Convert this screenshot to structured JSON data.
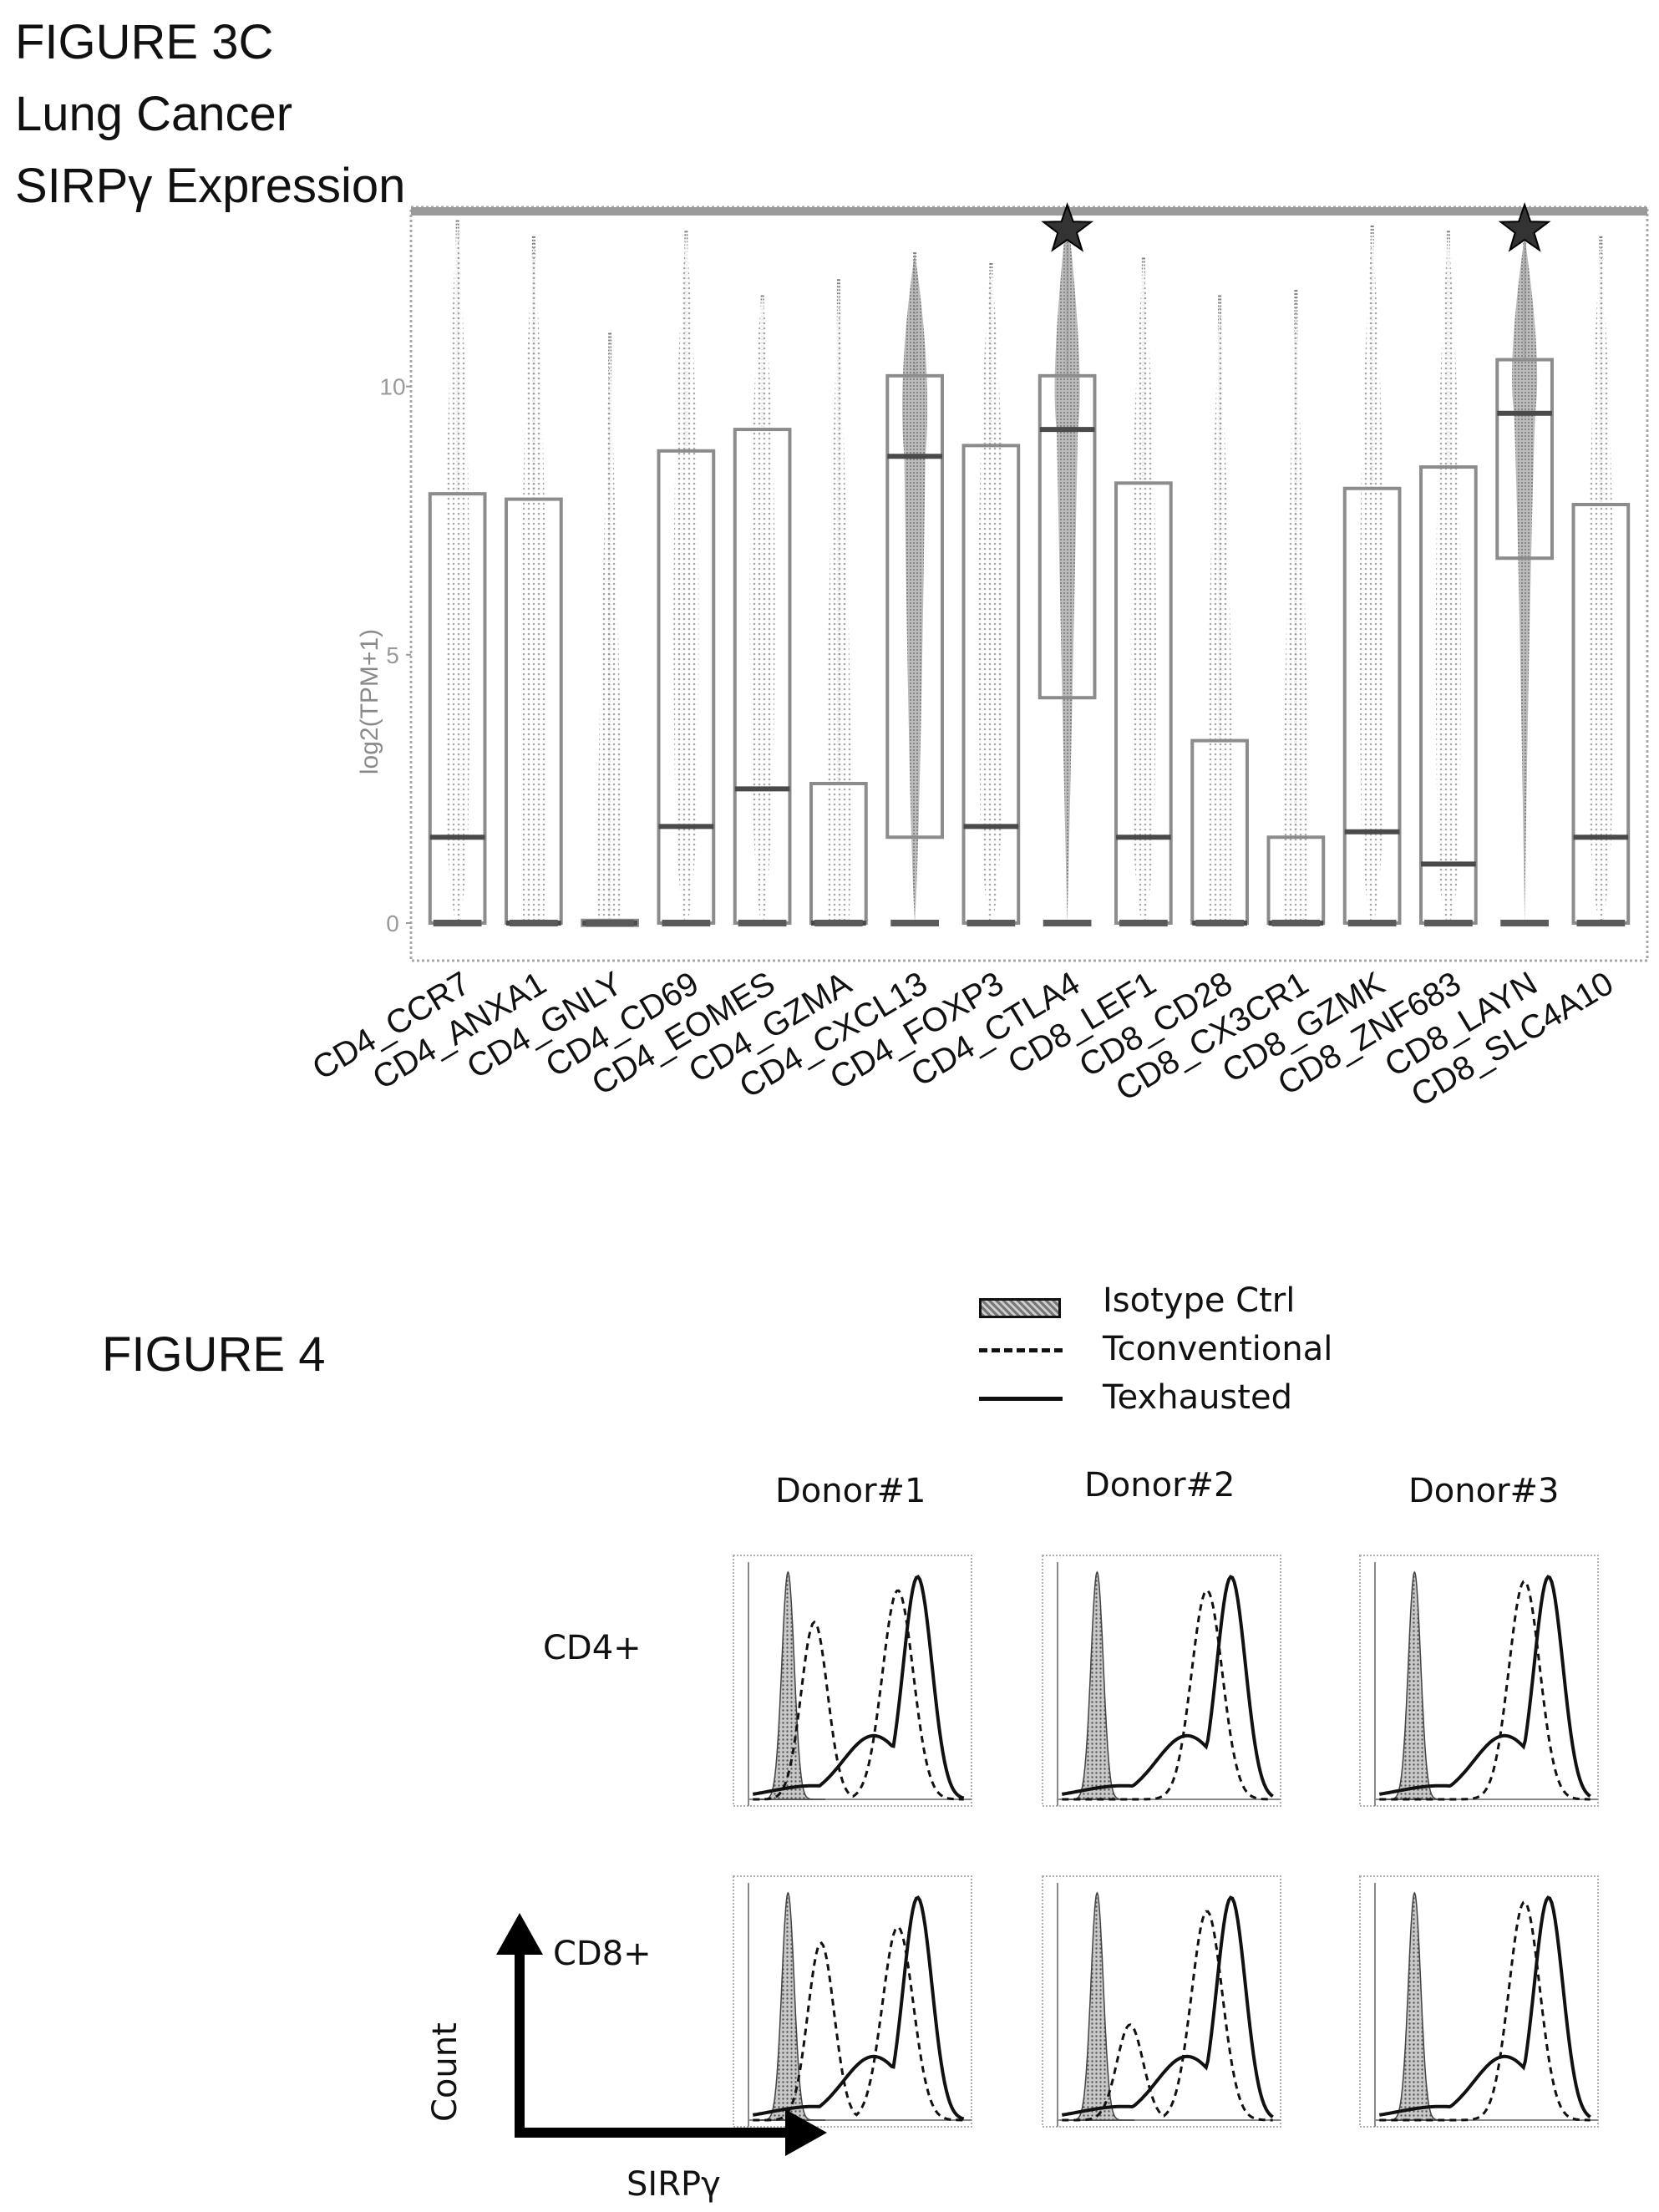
{
  "figure3c": {
    "title_lines": [
      "FIGURE 3C",
      "Lung Cancer",
      "SIRPγ Expression"
    ]
  },
  "figure4": {
    "title": "FIGURE 4",
    "legend": [
      {
        "label": "Isotype Ctrl",
        "style": "shaded"
      },
      {
        "label": "Tconventional",
        "style": "dashed"
      },
      {
        "label": "Texhausted",
        "style": "solid"
      }
    ],
    "donors": [
      "Donor#1",
      "Donor#2",
      "Donor#3"
    ],
    "rows": [
      "CD4+",
      "CD8+"
    ],
    "xlabel": "SIRPγ",
    "ylabel": "Count"
  },
  "chart_data": [
    {
      "type": "box",
      "title": "",
      "ylabel": "log2(TPM+1)",
      "ylim": [
        0,
        13
      ],
      "yticks": [
        0,
        5,
        10
      ],
      "categories": [
        "CD4_CCR7",
        "CD4_ANXA1",
        "CD4_GNLY",
        "CD4_CD69",
        "CD4_EOMES",
        "CD4_GZMA",
        "CD4_CXCL13",
        "CD4_FOXP3",
        "CD4_CTLA4",
        "CD8_LEF1",
        "CD8_CD28",
        "CD8_CX3CR1",
        "CD8_GZMK",
        "CD8_ZNF683",
        "CD8_LAYN",
        "CD8_SLC4A10"
      ],
      "boxes": [
        {
          "q1": 0,
          "median": 1.6,
          "q3": 8.0,
          "max": 13.1
        },
        {
          "q1": 0,
          "median": 0,
          "q3": 7.9,
          "max": 12.8
        },
        {
          "q1": 0,
          "median": 0,
          "q3": 0.05,
          "max": 11.0
        },
        {
          "q1": 0,
          "median": 1.8,
          "q3": 8.8,
          "max": 12.9
        },
        {
          "q1": 0,
          "median": 2.5,
          "q3": 9.2,
          "max": 11.7
        },
        {
          "q1": 0,
          "median": 0,
          "q3": 2.6,
          "max": 12.0
        },
        {
          "q1": 1.6,
          "median": 8.7,
          "q3": 10.2,
          "max": 12.5
        },
        {
          "q1": 0,
          "median": 1.8,
          "q3": 8.9,
          "max": 12.3
        },
        {
          "q1": 4.2,
          "median": 9.2,
          "q3": 10.2,
          "max": 13.3
        },
        {
          "q1": 0,
          "median": 1.6,
          "q3": 8.2,
          "max": 12.4
        },
        {
          "q1": 0,
          "median": 0,
          "q3": 3.4,
          "max": 11.7
        },
        {
          "q1": 0,
          "median": 0,
          "q3": 1.6,
          "max": 11.8
        },
        {
          "q1": 0,
          "median": 1.7,
          "q3": 8.1,
          "max": 13.0
        },
        {
          "q1": 0,
          "median": 1.1,
          "q3": 8.5,
          "max": 12.9
        },
        {
          "q1": 6.8,
          "median": 9.5,
          "q3": 10.5,
          "max": 12.8
        },
        {
          "q1": 0,
          "median": 1.6,
          "q3": 7.8,
          "max": 12.8
        }
      ],
      "highlighted": [
        "CD4_CTLA4",
        "CD8_LAYN"
      ],
      "highlight_marker": "star",
      "grid": false
    },
    {
      "type": "histogram-overlay",
      "title": "",
      "xlabel": "SIRPγ",
      "ylabel": "Count",
      "x_scale": "log",
      "ylim": [
        0,
        100
      ],
      "series_names": [
        "Isotype Ctrl",
        "Tconventional",
        "Texhausted"
      ],
      "panels": [
        {
          "donor": "Donor#1",
          "row": "CD4+",
          "iso_peak": 0.18,
          "conv_peaks": [
            [
              0.3,
              0.78
            ],
            [
              0.68,
              0.92
            ]
          ],
          "exh_peak": 0.77
        },
        {
          "donor": "Donor#2",
          "row": "CD4+",
          "iso_peak": 0.18,
          "conv_peaks": [
            [
              0.68,
              0.92
            ]
          ],
          "exh_peak": 0.79
        },
        {
          "donor": "Donor#3",
          "row": "CD4+",
          "iso_peak": 0.18,
          "conv_peaks": [
            [
              0.68,
              0.96
            ]
          ],
          "exh_peak": 0.79
        },
        {
          "donor": "Donor#1",
          "row": "CD8+",
          "iso_peak": 0.18,
          "conv_peaks": [
            [
              0.33,
              0.78
            ],
            [
              0.68,
              0.85
            ]
          ],
          "exh_peak": 0.77
        },
        {
          "donor": "Donor#2",
          "row": "CD8+",
          "iso_peak": 0.18,
          "conv_peaks": [
            [
              0.33,
              0.42
            ],
            [
              0.68,
              0.92
            ]
          ],
          "exh_peak": 0.79
        },
        {
          "donor": "Donor#3",
          "row": "CD8+",
          "iso_peak": 0.18,
          "conv_peaks": [
            [
              0.68,
              0.96
            ]
          ],
          "exh_peak": 0.79
        }
      ]
    }
  ]
}
